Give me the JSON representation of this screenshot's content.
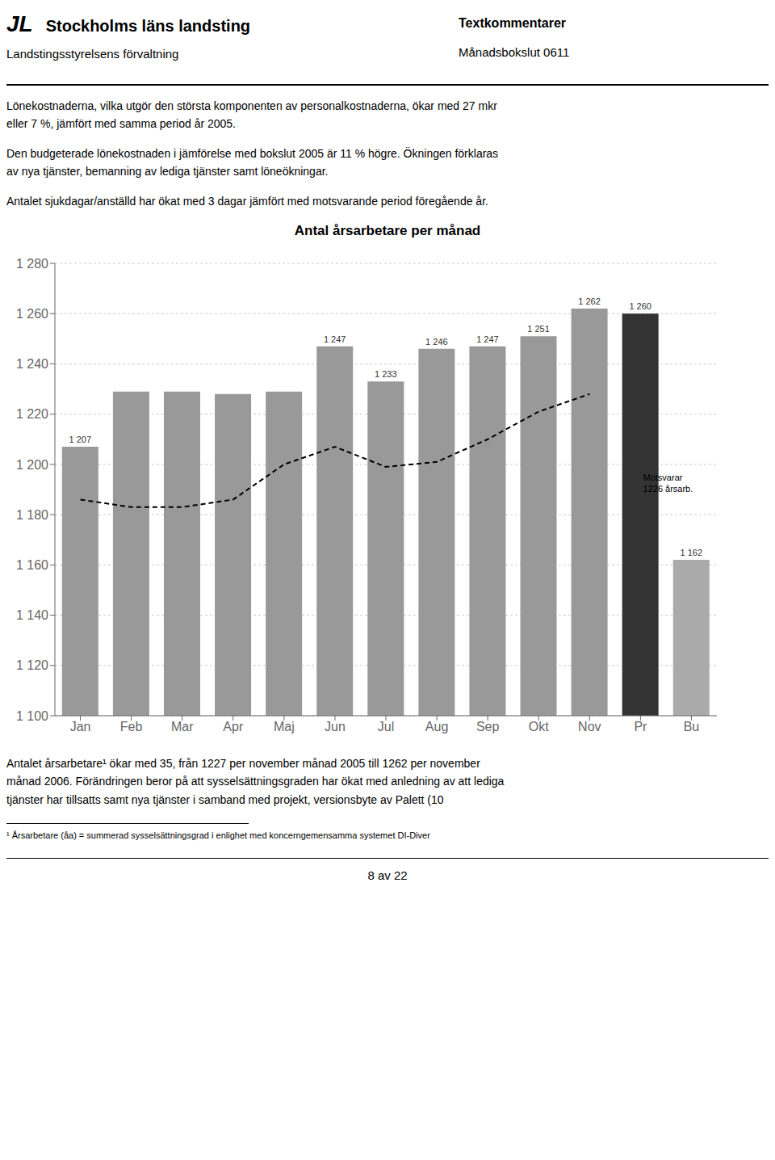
{
  "chart_data": {
    "type": "bar",
    "title": "Antal årsarbetare per månad",
    "categories": [
      "Jan",
      "Feb",
      "Mar",
      "Apr",
      "Maj",
      "Jun",
      "Jul",
      "Aug",
      "Sep",
      "Okt",
      "Nov",
      "Pr",
      "Bu"
    ],
    "series": [
      {
        "type": "bar",
        "colors": [
          "#999999",
          "#999999",
          "#999999",
          "#999999",
          "#999999",
          "#999999",
          "#999999",
          "#999999",
          "#999999",
          "#999999",
          "#999999",
          "#333333",
          "#aaaaaa"
        ],
        "values": [
          1207,
          1229,
          1229,
          1228,
          1229,
          1247,
          1233,
          1246,
          1247,
          1251,
          1262,
          1260,
          1162
        ],
        "value_labels": [
          "1 207",
          null,
          null,
          null,
          null,
          "1 247",
          "1 233",
          "1 246",
          "1 247",
          "1 251",
          "1 262",
          "1 260",
          "1 162"
        ]
      },
      {
        "type": "line",
        "color": "#000000",
        "line_style": "dashed",
        "values": [
          1186,
          1183,
          1183,
          1186,
          1200,
          1207,
          1199,
          1201,
          1210,
          1221,
          1228,
          null,
          null
        ]
      }
    ],
    "data_labels": true,
    "annotations": [
      {
        "text": "Motsvarar\n1226 årsarb."
      }
    ],
    "ylim": [
      1100,
      1280
    ],
    "yticks": [
      {
        "value": 1100,
        "label": "1 100"
      },
      {
        "value": 1120,
        "label": "1 120"
      },
      {
        "value": 1140,
        "label": "1 140"
      },
      {
        "value": 1160,
        "label": "1 160"
      },
      {
        "value": 1180,
        "label": "1 180"
      },
      {
        "value": 1200,
        "label": "1 200"
      },
      {
        "value": 1220,
        "label": "1 220"
      },
      {
        "value": 1240,
        "label": "1 240"
      },
      {
        "value": 1260,
        "label": "1 260"
      },
      {
        "value": 1280,
        "label": "1 280"
      }
    ],
    "grid": true
  },
  "page": {
    "logo": "JL",
    "header_left_bold": "Stockholms läns landsting",
    "header_left_sub": "Landstingsstyrelsens förvaltning",
    "header_right_bold": "Textkommentarer",
    "header_right_sub": "Månadsbokslut 0611",
    "paragraphs": [
      "Lönekostnaderna, vilka utgör den största komponenten av personalkostnaderna, ökar med 27 mkr\neller 7 %, jämfört med samma period år 2005.",
      "Den budgeterade lönekostnaden i jämförelse med bokslut 2005 är 11 % högre. Ökningen förklaras\nav nya tjänster, bemanning av lediga tjänster samt löneökningar.",
      "Antalet sjukdagar/anställd har ökat med 3 dagar jämfört med motsvarande period föregående år."
    ],
    "bottom_paragraph": "Antalet årsarbetare¹ ökar med 35, från 1227 per november månad 2005 till 1262 per november\nmånad 2006. Förändringen beror på att sysselsättningsgraden har ökat med anledning av att lediga\ntjänster har tillsatts samt nya tjänster i samband med projekt, versionsbyte av Palett (10",
    "footnote": "¹ Årsarbetare (åa) = summerad sysselsättningsgrad i enlighet med koncerngemensamma systemet DI-Diver",
    "page_footer": "8 av 22"
  }
}
